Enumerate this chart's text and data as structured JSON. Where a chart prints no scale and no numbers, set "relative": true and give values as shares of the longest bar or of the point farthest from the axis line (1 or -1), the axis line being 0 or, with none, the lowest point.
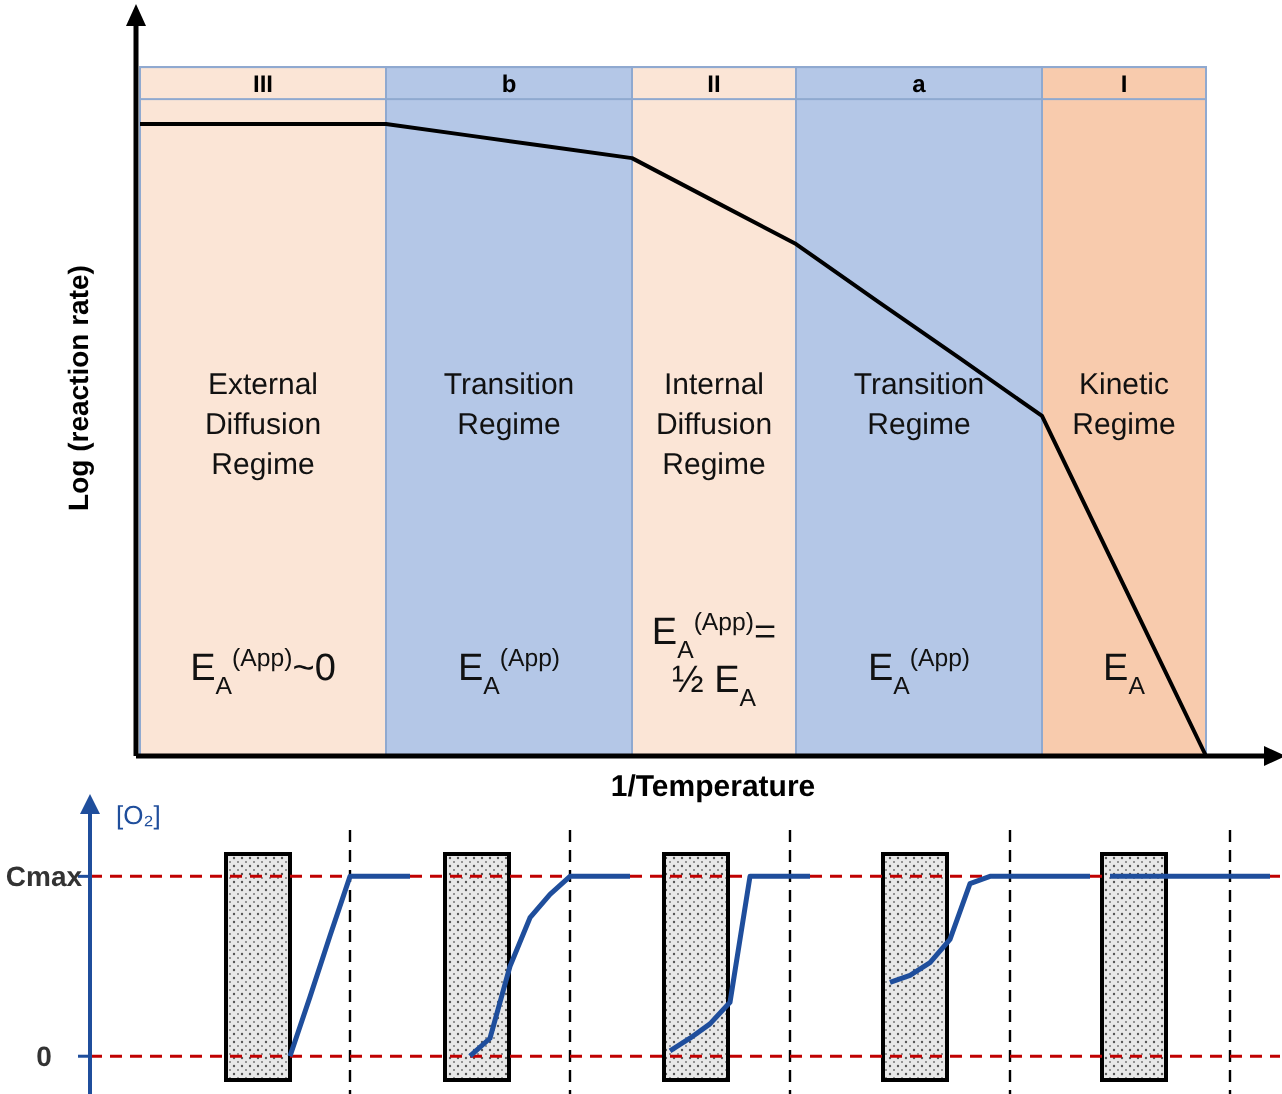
{
  "chart_data": [
    {
      "type": "line",
      "relative": true,
      "xlabel": "1/Temperature",
      "ylabel": "Log (reaction rate)",
      "categories": [
        null,
        null,
        null,
        null,
        null,
        null,
        null,
        null,
        null,
        null,
        null,
        null,
        null,
        null
      ],
      "series": [
        {
          "color": "#000000",
          "values": [
            1,
            1,
            1,
            1,
            0.982,
            0.964,
            0.946,
            0.878,
            0.81,
            0.719,
            0.629,
            0.538,
            0.269,
            0
          ]
        }
      ],
      "annotations": [
        "III",
        "b",
        "II",
        "a",
        "I",
        "External\nDiffusion\nRegime",
        "Transition\nRegime",
        "Internal\nDiffusion\nRegime",
        "Transition\nRegime",
        "Kinetic\nRegime",
        "E$_{A}$$^{(App)}$~0",
        "E$_{A}$$^{(App)}$",
        "E$_{A}$$^{(App)}$=\n½ E$_{A}$",
        "E$_{A}$$^{(App)}$",
        "E$_{A}$"
      ]
    },
    {
      "type": "line",
      "relative": true,
      "ylabel": "[O₂]",
      "grid": "x",
      "line_style": "solid",
      "marker": "none",
      "categories": [
        null,
        null,
        null,
        null,
        null,
        null,
        null,
        null,
        null,
        null,
        null,
        null,
        null,
        null,
        null,
        null,
        null,
        null,
        null,
        null,
        null,
        null,
        null,
        null,
        null,
        null,
        null,
        null,
        null,
        null,
        null,
        null,
        null,
        null,
        null,
        null,
        null,
        null,
        null,
        null,
        null,
        null,
        null,
        null,
        null,
        null,
        null,
        null,
        null,
        null
      ],
      "series": [
        {
          "color": "#1f4e9c",
          "values": [
            0,
            0.33,
            0.67,
            1,
            1,
            1,
            1,
            null,
            null,
            null,
            null,
            null,
            null,
            null,
            null,
            null,
            null,
            null,
            null,
            null,
            null,
            null,
            null,
            null,
            null,
            null,
            null,
            null,
            null,
            null,
            null,
            null,
            null,
            null,
            null,
            null,
            null,
            null,
            null,
            null,
            null,
            null,
            null,
            null,
            null,
            null,
            null,
            null,
            null,
            null
          ]
        },
        {
          "color": "#1f4e9c",
          "values": [
            null,
            null,
            null,
            null,
            null,
            null,
            null,
            null,
            null,
            0,
            0.1,
            0.5,
            0.77,
            0.9,
            1,
            1,
            1,
            1,
            null,
            null,
            null,
            null,
            null,
            null,
            null,
            null,
            null,
            null,
            null,
            null,
            null,
            null,
            null,
            null,
            null,
            null,
            null,
            null,
            null,
            null,
            null,
            null,
            null,
            null,
            null,
            null,
            null,
            null,
            null,
            null
          ]
        },
        {
          "color": "#1f4e9c",
          "values": [
            null,
            null,
            null,
            null,
            null,
            null,
            null,
            null,
            null,
            null,
            null,
            null,
            null,
            null,
            null,
            null,
            null,
            null,
            null,
            0.03,
            0.1,
            0.18,
            0.3,
            1,
            1,
            1,
            1,
            null,
            null,
            null,
            null,
            null,
            null,
            null,
            null,
            null,
            null,
            null,
            null,
            null,
            null,
            null,
            null,
            null,
            null,
            null,
            null,
            null,
            null,
            null
          ]
        },
        {
          "color": "#1f4e9c",
          "values": [
            null,
            null,
            null,
            null,
            null,
            null,
            null,
            null,
            null,
            null,
            null,
            null,
            null,
            null,
            null,
            null,
            null,
            null,
            null,
            null,
            null,
            null,
            null,
            null,
            null,
            null,
            null,
            null,
            null,
            null,
            0.41,
            0.45,
            0.52,
            0.65,
            0.96,
            1,
            1,
            1,
            1,
            1,
            1,
            null,
            null,
            null,
            null,
            null,
            null,
            null,
            null,
            null
          ]
        },
        {
          "color": "#1f4e9c",
          "values": [
            null,
            null,
            null,
            null,
            null,
            null,
            null,
            null,
            null,
            null,
            null,
            null,
            null,
            null,
            null,
            null,
            null,
            null,
            null,
            null,
            null,
            null,
            null,
            null,
            null,
            null,
            null,
            null,
            null,
            null,
            null,
            null,
            null,
            null,
            null,
            null,
            null,
            null,
            null,
            null,
            null,
            1,
            1,
            1,
            1,
            1,
            1,
            1,
            1,
            1
          ]
        }
      ],
      "ref_lines": [
        {
          "axis": "y",
          "value": 1,
          "label": "Cmax",
          "color": "#c00000",
          "line_style": "dashed"
        },
        {
          "axis": "y",
          "value": 0,
          "label": "0",
          "color": "#c00000",
          "line_style": "dashed"
        }
      ]
    }
  ]
}
